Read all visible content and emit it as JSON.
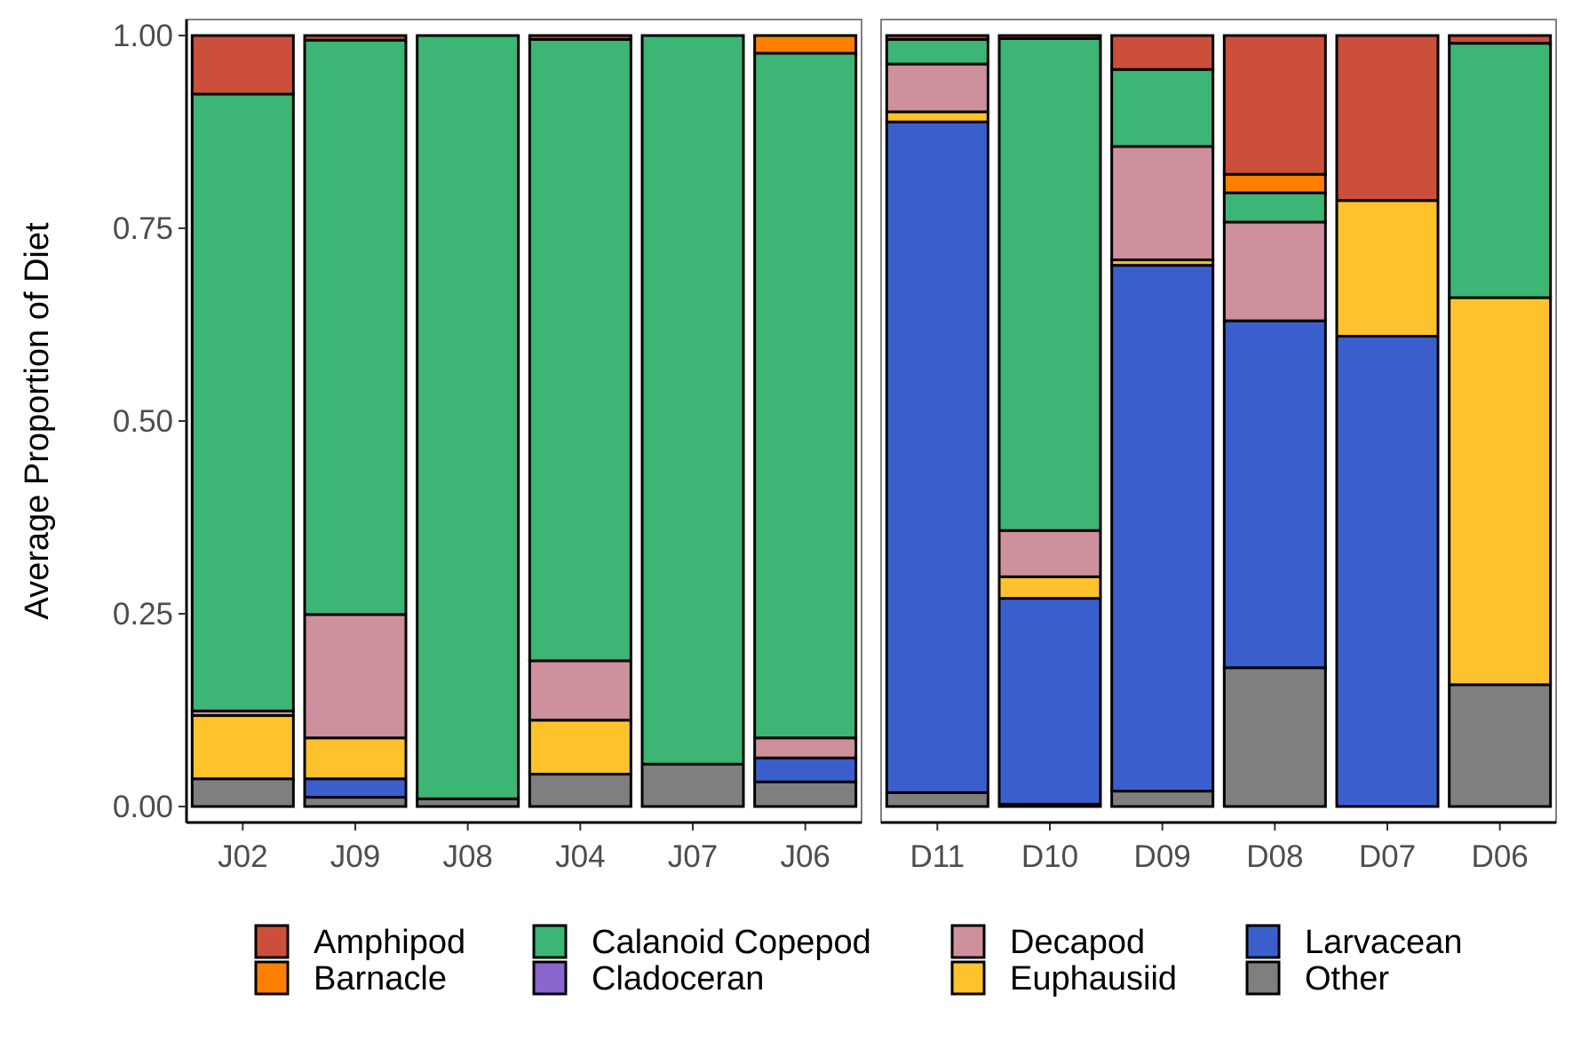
{
  "chart_data": {
    "type": "bar",
    "stacked": true,
    "ylabel": "Average Proportion of Diet",
    "xlabel": "",
    "ylim": [
      0,
      1
    ],
    "yticks": [
      "0.00",
      "0.25",
      "0.50",
      "0.75",
      "1.00"
    ],
    "grid": false,
    "legend_position": "bottom",
    "categories_stack_order": [
      "Other",
      "Larvacean",
      "Euphausiid",
      "Decapod",
      "Cladoceran",
      "Calanoid Copepod",
      "Barnacle",
      "Amphipod"
    ],
    "legend": [
      {
        "name": "Amphipod",
        "color": "#CC4F3C"
      },
      {
        "name": "Barnacle",
        "color": "#FF7F00"
      },
      {
        "name": "Calanoid Copepod",
        "color": "#3DB574"
      },
      {
        "name": "Cladoceran",
        "color": "#8966CC"
      },
      {
        "name": "Decapod",
        "color": "#CD909C"
      },
      {
        "name": "Euphausiid",
        "color": "#FEC22C"
      },
      {
        "name": "Larvacean",
        "color": "#3A5FCD"
      },
      {
        "name": "Other",
        "color": "#7F7F7F"
      }
    ],
    "panels": [
      {
        "bars": [
          {
            "label": "J02",
            "segments": [
              [
                "Other",
                0.036
              ],
              [
                "Larvacean",
                0.0
              ],
              [
                "Euphausiid",
                0.082
              ],
              [
                "Decapod",
                0.006
              ],
              [
                "Cladoceran",
                0.0
              ],
              [
                "Calanoid Copepod",
                0.8
              ],
              [
                "Barnacle",
                0.0
              ],
              [
                "Amphipod",
                0.076
              ]
            ]
          },
          {
            "label": "J09",
            "segments": [
              [
                "Other",
                0.012
              ],
              [
                "Larvacean",
                0.024
              ],
              [
                "Euphausiid",
                0.053
              ],
              [
                "Decapod",
                0.16
              ],
              [
                "Cladoceran",
                0.0
              ],
              [
                "Calanoid Copepod",
                0.745
              ],
              [
                "Barnacle",
                0.0
              ],
              [
                "Amphipod",
                0.006
              ]
            ]
          },
          {
            "label": "J08",
            "segments": [
              [
                "Other",
                0.01
              ],
              [
                "Larvacean",
                0.0
              ],
              [
                "Euphausiid",
                0.0
              ],
              [
                "Decapod",
                0.0
              ],
              [
                "Cladoceran",
                0.0
              ],
              [
                "Calanoid Copepod",
                0.99
              ],
              [
                "Barnacle",
                0.0
              ],
              [
                "Amphipod",
                0.0
              ]
            ]
          },
          {
            "label": "J04",
            "segments": [
              [
                "Other",
                0.042
              ],
              [
                "Larvacean",
                0.0
              ],
              [
                "Euphausiid",
                0.07
              ],
              [
                "Decapod",
                0.077
              ],
              [
                "Cladoceran",
                0.0
              ],
              [
                "Calanoid Copepod",
                0.806
              ],
              [
                "Barnacle",
                0.0
              ],
              [
                "Amphipod",
                0.005
              ]
            ]
          },
          {
            "label": "J07",
            "segments": [
              [
                "Other",
                0.055
              ],
              [
                "Larvacean",
                0.0
              ],
              [
                "Euphausiid",
                0.0
              ],
              [
                "Decapod",
                0.0
              ],
              [
                "Cladoceran",
                0.0
              ],
              [
                "Calanoid Copepod",
                0.945
              ],
              [
                "Barnacle",
                0.0
              ],
              [
                "Amphipod",
                0.0
              ]
            ]
          },
          {
            "label": "J06",
            "segments": [
              [
                "Other",
                0.032
              ],
              [
                "Larvacean",
                0.031
              ],
              [
                "Euphausiid",
                0.0
              ],
              [
                "Decapod",
                0.026
              ],
              [
                "Cladoceran",
                0.0
              ],
              [
                "Calanoid Copepod",
                0.888
              ],
              [
                "Barnacle",
                0.023
              ],
              [
                "Amphipod",
                0.0
              ]
            ]
          }
        ]
      },
      {
        "bars": [
          {
            "label": "D11",
            "segments": [
              [
                "Other",
                0.018
              ],
              [
                "Larvacean",
                0.87
              ],
              [
                "Euphausiid",
                0.013
              ],
              [
                "Decapod",
                0.062
              ],
              [
                "Cladoceran",
                0.0
              ],
              [
                "Calanoid Copepod",
                0.032
              ],
              [
                "Barnacle",
                0.0
              ],
              [
                "Amphipod",
                0.005
              ]
            ]
          },
          {
            "label": "D10",
            "segments": [
              [
                "Other",
                0.003
              ],
              [
                "Larvacean",
                0.267
              ],
              [
                "Euphausiid",
                0.028
              ],
              [
                "Decapod",
                0.06
              ],
              [
                "Cladoceran",
                0.0
              ],
              [
                "Calanoid Copepod",
                0.638
              ],
              [
                "Barnacle",
                0.0
              ],
              [
                "Amphipod",
                0.004
              ]
            ]
          },
          {
            "label": "D09",
            "segments": [
              [
                "Other",
                0.02
              ],
              [
                "Larvacean",
                0.682
              ],
              [
                "Euphausiid",
                0.007
              ],
              [
                "Decapod",
                0.147
              ],
              [
                "Cladoceran",
                0.0
              ],
              [
                "Calanoid Copepod",
                0.1
              ],
              [
                "Barnacle",
                0.0
              ],
              [
                "Amphipod",
                0.044
              ]
            ]
          },
          {
            "label": "D08",
            "segments": [
              [
                "Other",
                0.18
              ],
              [
                "Larvacean",
                0.45
              ],
              [
                "Euphausiid",
                0.0
              ],
              [
                "Decapod",
                0.128
              ],
              [
                "Cladoceran",
                0.0
              ],
              [
                "Calanoid Copepod",
                0.038
              ],
              [
                "Barnacle",
                0.024
              ],
              [
                "Amphipod",
                0.18
              ]
            ]
          },
          {
            "label": "D07",
            "segments": [
              [
                "Other",
                0.0
              ],
              [
                "Larvacean",
                0.61
              ],
              [
                "Euphausiid",
                0.176
              ],
              [
                "Decapod",
                0.0
              ],
              [
                "Cladoceran",
                0.0
              ],
              [
                "Calanoid Copepod",
                0.0
              ],
              [
                "Barnacle",
                0.0
              ],
              [
                "Amphipod",
                0.214
              ]
            ]
          },
          {
            "label": "D06",
            "segments": [
              [
                "Other",
                0.158
              ],
              [
                "Larvacean",
                0.0
              ],
              [
                "Euphausiid",
                0.502
              ],
              [
                "Decapod",
                0.0
              ],
              [
                "Cladoceran",
                0.0
              ],
              [
                "Calanoid Copepod",
                0.33
              ],
              [
                "Barnacle",
                0.0
              ],
              [
                "Amphipod",
                0.01
              ]
            ]
          }
        ]
      }
    ]
  }
}
